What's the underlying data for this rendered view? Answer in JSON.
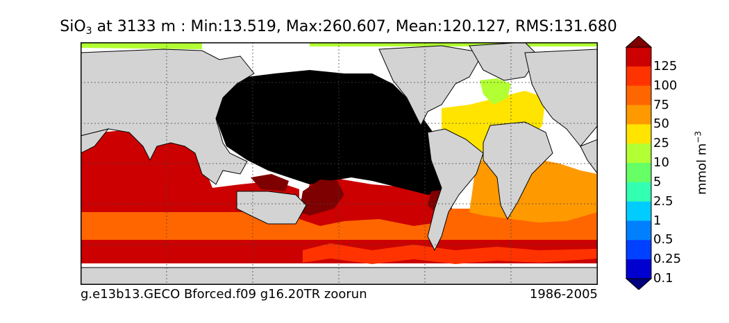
{
  "title": {
    "variable": "SiO",
    "subscript": "3",
    "rest": " at 3133 m : Min:13.519, Max:260.607, Mean:120.127, RMS:131.680"
  },
  "footer": {
    "case_name": "g.e13b13.GECO Bforced.f09 g16.20TR zoorun",
    "period": "1986-2005"
  },
  "colorbar": {
    "units_prefix": "mmol m",
    "units_exponent": "−3",
    "labels": [
      "125",
      "100",
      "75",
      "50",
      "25",
      "10",
      "5",
      "2.5",
      "1",
      "0.5",
      "0.25",
      "0.1"
    ],
    "colors": [
      "#7f0000",
      "#cc0000",
      "#ff3300",
      "#ff6600",
      "#ff9900",
      "#ffe400",
      "#b2ff33",
      "#66ff66",
      "#33ffb2",
      "#00ccff",
      "#0080ff",
      "#0040ff",
      "#0000d0",
      "#00007f"
    ]
  },
  "map": {
    "land_color": "#d3d3d3",
    "missing_color": "#ffffff",
    "pacific_color": "#000000"
  }
}
